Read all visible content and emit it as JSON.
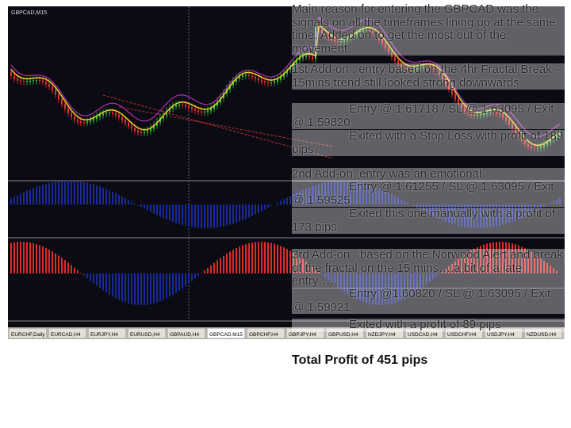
{
  "chart_label": "GBPCAD,M15",
  "tabs": [
    "EURCHF,Daily",
    "EURCAD,H4",
    "EURJPY,H4",
    "EURUSD,H4",
    "GBPAUD,H4",
    "GBPCAD,M15",
    "GBPCHF,H4",
    "GBPJPY,H4",
    "GBPUSD,H4",
    "NZDJPY,H4",
    "USDCAD,H4",
    "USDCHF,H4",
    "USDJPY,H4",
    "NZDUSD,H4"
  ],
  "notes": [
    {
      "text": "Main reason for entering the GBPCAD was the signals on all the timeframes lining up at the same time.  Added on to get the most out of the movement."
    },
    {
      "text": "1st Add-on : entry based on the 4hr Fractal Break – 15mins trend still looked strong downwards."
    },
    {
      "text": "Entry @ 1.61718 / SL @ 1.63095 / Exit @ 1.59820"
    },
    {
      "text": "Exited with a Stop Loss with profit of 189 pips"
    },
    {
      "text": "2nd Add-on:  entry was an emotional"
    },
    {
      "text": "Entry @ 1.61255 / SL @ 1.63095 / Exit @ 1.59525"
    },
    {
      "text": "Exited this one manually with a profit of 173 pips."
    },
    {
      "text": "3rd Add-on : based on the Norwood Alert and break of the fractal on the 15 mins….a bit of a late entry….."
    },
    {
      "text": "Entry @1.60820 / SL @ 1.63095 / Exit @ 1.59921"
    },
    {
      "text": "Exited with a profit of 89 pips"
    }
  ],
  "total": "Total Profit of 451 pips"
}
